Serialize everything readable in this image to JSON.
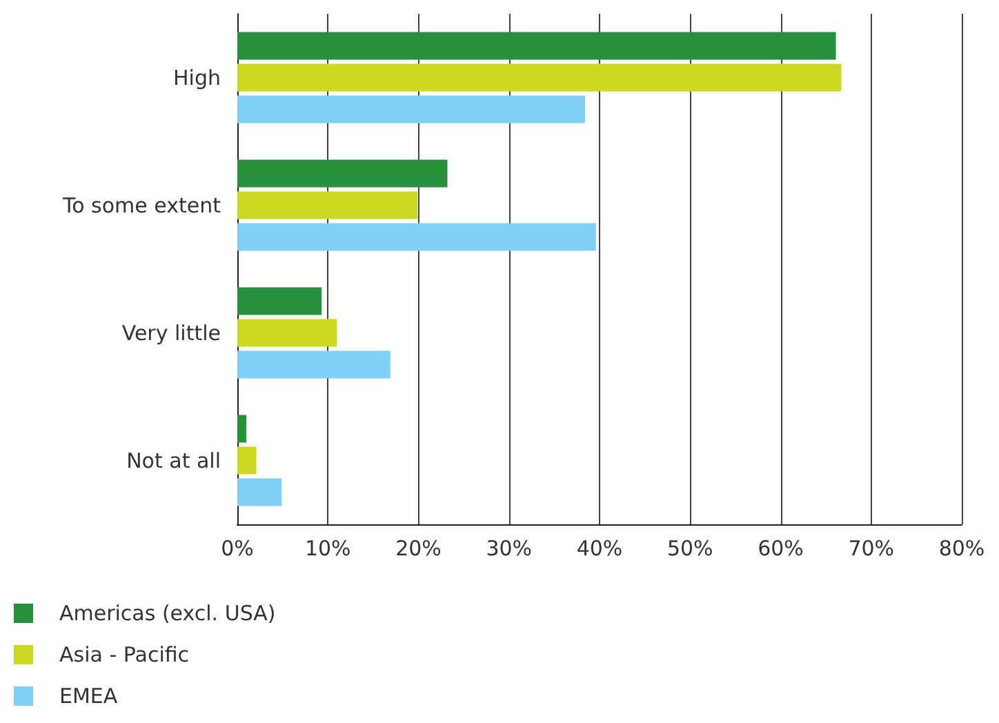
{
  "chart_data": {
    "type": "bar",
    "orientation": "horizontal",
    "categories": [
      "High",
      "To some extent",
      "Very little",
      "Not at all"
    ],
    "series": [
      {
        "name": "Americas (excl. USA)",
        "color": "#26903c",
        "values": [
          66.1,
          23.2,
          9.3,
          1.0
        ]
      },
      {
        "name": "Asia - Pacific",
        "color": "#cdd823",
        "values": [
          66.7,
          19.9,
          11.0,
          2.1
        ]
      },
      {
        "name": "EMEA",
        "color": "#7fd0f4",
        "values": [
          38.4,
          39.6,
          16.9,
          4.9
        ]
      }
    ],
    "xlim": [
      0,
      80
    ],
    "xticks": [
      {
        "value": 0,
        "label": "0%"
      },
      {
        "value": 10,
        "label": "10%"
      },
      {
        "value": 20,
        "label": "20%"
      },
      {
        "value": 30,
        "label": "30%"
      },
      {
        "value": 40,
        "label": "40%"
      },
      {
        "value": 50,
        "label": "50%"
      },
      {
        "value": 60,
        "label": "60%"
      },
      {
        "value": 70,
        "label": "70%"
      },
      {
        "value": 80,
        "label": "80%"
      }
    ],
    "grid": "x",
    "legend": "bottom left"
  }
}
